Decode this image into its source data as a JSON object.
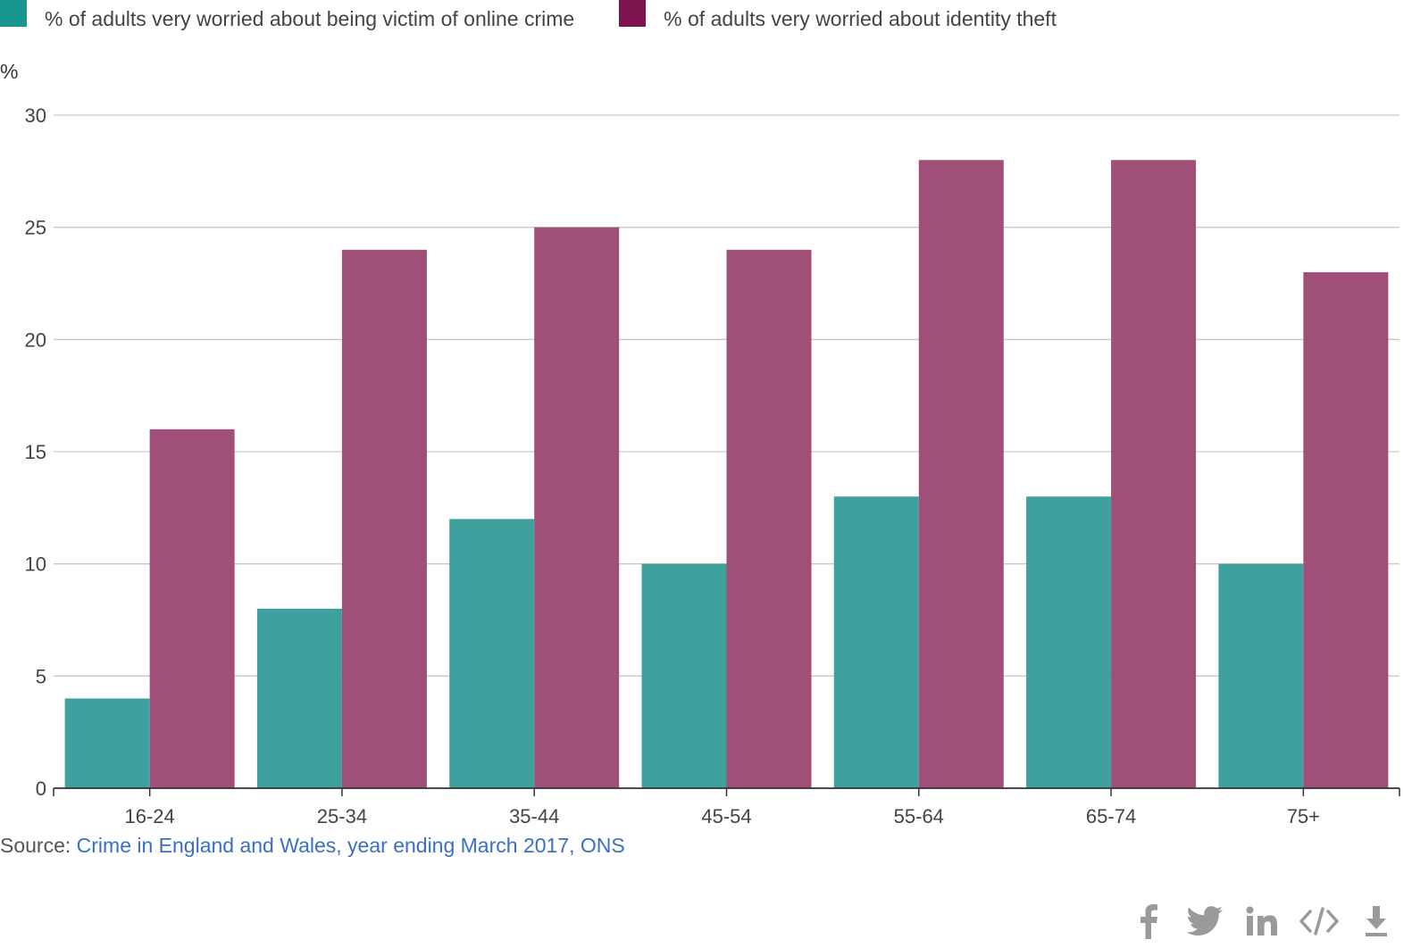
{
  "legend": [
    {
      "label": "% of adults very worried about being victim of online crime",
      "color": "#1a9690"
    },
    {
      "label": "% of adults very worried about identity theft",
      "color": "#7d1450"
    }
  ],
  "chart_data": {
    "type": "bar",
    "title": "",
    "xlabel": "",
    "ylabel": "%",
    "ylim": [
      0,
      30
    ],
    "yticks": [
      0,
      5,
      10,
      15,
      20,
      25,
      30
    ],
    "grid": true,
    "categories": [
      "16-24",
      "25-34",
      "35-44",
      "45-54",
      "55-64",
      "65-74",
      "75+"
    ],
    "series": [
      {
        "name": "% of adults very worried about being victim of online crime",
        "color": "#3fa19e",
        "values": [
          4,
          8,
          12,
          10,
          13,
          13,
          10
        ]
      },
      {
        "name": "% of adults very worried about identity theft",
        "color": "#a04f79",
        "values": [
          16,
          24,
          25,
          24,
          28,
          28,
          23
        ]
      }
    ]
  },
  "source": {
    "prefix": "Source: ",
    "link_text": "Crime in England and Wales, year ending March 2017, ONS"
  },
  "share": {
    "icons": [
      "facebook-icon",
      "twitter-icon",
      "linkedin-icon",
      "embed-icon",
      "download-icon"
    ],
    "color": "#9a9a9a"
  }
}
